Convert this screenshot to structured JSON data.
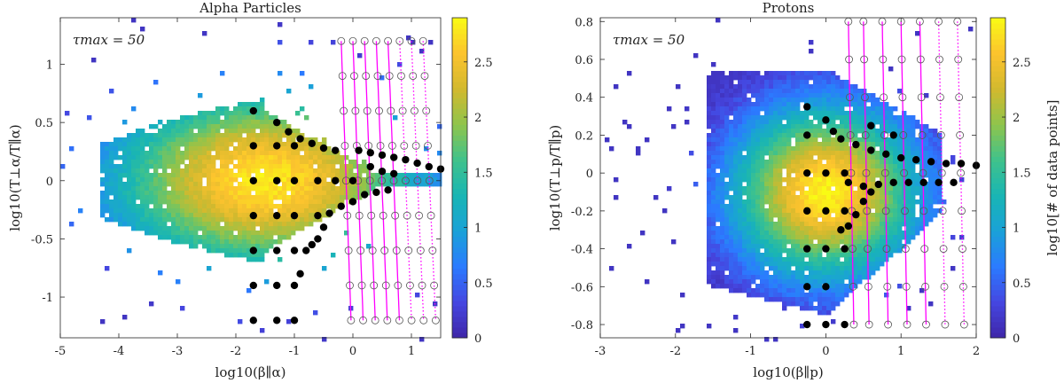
{
  "chart_data": [
    {
      "type": "heatmap",
      "title": "Alpha Particles",
      "xlabel": "log10(β∥α)",
      "ylabel": "log10(T⊥α/T∥α)",
      "xlim": [
        -5,
        1.5
      ],
      "ylim": [
        -1.35,
        1.4
      ],
      "xticks": [
        "-5",
        "-4",
        "-3",
        "-2",
        "-1",
        "0",
        "1"
      ],
      "xtick_values": [
        -5,
        -4,
        -3,
        -2,
        -1,
        0,
        1
      ],
      "yticks": [
        "1",
        "0.5",
        "0",
        "-0.5",
        "-1"
      ],
      "ytick_values": [
        1,
        0.5,
        0,
        -0.5,
        -1
      ],
      "annotation": "τmax = 50",
      "colorbar": {
        "label": "",
        "ticks": [
          "0",
          "0.5",
          "1",
          "1.5",
          "2",
          "2.5"
        ],
        "tick_values": [
          0,
          0.5,
          1,
          1.5,
          2,
          2.5
        ],
        "range": [
          0,
          2.9
        ]
      },
      "density_center": [
        -1.5,
        0.0
      ],
      "black_points": [
        [
          -1.7,
          0.6
        ],
        [
          -1.7,
          0.3
        ],
        [
          -1.7,
          0
        ],
        [
          -1.7,
          -0.3
        ],
        [
          -1.7,
          -0.6
        ],
        [
          -1.7,
          -0.9
        ],
        [
          -1.7,
          -1.2
        ],
        [
          -1.3,
          0.3
        ],
        [
          -1.3,
          0
        ],
        [
          -1.3,
          -0.3
        ],
        [
          -1.3,
          -0.6
        ],
        [
          -1.3,
          -0.9
        ],
        [
          -1.3,
          -1.2
        ],
        [
          -1.0,
          0.3
        ],
        [
          -1.0,
          0
        ],
        [
          -1.0,
          -0.3
        ],
        [
          -1.0,
          -0.6
        ],
        [
          -1.0,
          -1.2
        ],
        [
          -0.6,
          0
        ],
        [
          -0.6,
          -0.3
        ],
        [
          -0.3,
          0
        ],
        [
          0,
          0
        ],
        [
          -1.3,
          0.5
        ],
        [
          -1.1,
          0.42
        ],
        [
          -0.9,
          0.36
        ],
        [
          -0.7,
          0.32
        ],
        [
          -0.5,
          0.28
        ],
        [
          -0.3,
          0.26
        ],
        [
          0.1,
          0.26
        ],
        [
          0.3,
          0.24
        ],
        [
          0.5,
          0.22
        ],
        [
          0.7,
          0.2
        ],
        [
          0.9,
          0.18
        ],
        [
          1.1,
          0.15
        ],
        [
          1.3,
          0.12
        ],
        [
          1.5,
          0.1
        ],
        [
          0.3,
          0.12
        ],
        [
          0.5,
          0.08
        ],
        [
          0.7,
          0.06
        ],
        [
          -0.4,
          -0.28
        ],
        [
          -0.2,
          -0.22
        ],
        [
          0,
          -0.18
        ],
        [
          0.2,
          -0.12
        ],
        [
          0.4,
          -0.1
        ],
        [
          0.6,
          -0.08
        ],
        [
          -0.5,
          -0.4
        ],
        [
          -0.6,
          -0.5
        ],
        [
          -0.8,
          -0.6
        ],
        [
          -0.9,
          -0.8
        ],
        [
          -1.0,
          -0.9
        ],
        [
          -0.7,
          -0.55
        ]
      ],
      "marker_grid": {
        "x": [
          -0.2,
          0,
          0.2,
          0.4,
          0.6,
          0.8,
          1.0,
          1.2
        ],
        "y": [
          1.2,
          0.9,
          0.6,
          0.3,
          0,
          -0.3,
          -0.6,
          -0.9,
          -1.2
        ]
      }
    },
    {
      "type": "heatmap",
      "title": "Protons",
      "xlabel": "log10(β∥p)",
      "ylabel": "log10(T⊥p/T∥p)",
      "xlim": [
        -3,
        2
      ],
      "ylim": [
        -0.87,
        0.82
      ],
      "xticks": [
        "-3",
        "-2",
        "-1",
        "0",
        "1",
        "2"
      ],
      "xtick_values": [
        -3,
        -2,
        -1,
        0,
        1,
        2
      ],
      "yticks": [
        "0.8",
        "0.6",
        "0.4",
        "0.2",
        "0",
        "-0.2",
        "-0.4",
        "-0.6",
        "-0.8"
      ],
      "ytick_values": [
        0.8,
        0.6,
        0.4,
        0.2,
        0,
        -0.2,
        -0.4,
        -0.6,
        -0.8
      ],
      "annotation": "τmax = 50",
      "colorbar": {
        "label": "log10[# of data points]",
        "ticks": [
          "0",
          "0.5",
          "1",
          "1.5",
          "2",
          "2.5"
        ],
        "tick_values": [
          0,
          0.5,
          1,
          1.5,
          2,
          2.5
        ],
        "range": [
          0,
          2.9
        ]
      },
      "density_center": [
        0.0,
        -0.1
      ],
      "black_points": [
        [
          -0.25,
          0.2
        ],
        [
          -0.25,
          0
        ],
        [
          -0.25,
          -0.2
        ],
        [
          -0.25,
          -0.4
        ],
        [
          -0.25,
          -0.6
        ],
        [
          -0.25,
          -0.8
        ],
        [
          0,
          0
        ],
        [
          0,
          -0.2
        ],
        [
          0,
          -0.4
        ],
        [
          0,
          -0.6
        ],
        [
          0,
          -0.8
        ],
        [
          0.25,
          0
        ],
        [
          0.25,
          -0.2
        ],
        [
          0.25,
          -0.4
        ],
        [
          0.25,
          -0.8
        ],
        [
          -0.25,
          0.35
        ],
        [
          0,
          0.28
        ],
        [
          0.1,
          0.22
        ],
        [
          0.2,
          0.18
        ],
        [
          0.4,
          0.15
        ],
        [
          0.6,
          0.12
        ],
        [
          0.8,
          0.1
        ],
        [
          1.0,
          0.08
        ],
        [
          1.2,
          0.07
        ],
        [
          1.4,
          0.06
        ],
        [
          1.6,
          0.05
        ],
        [
          1.8,
          0.05
        ],
        [
          2.0,
          0.04
        ],
        [
          0.6,
          0.25
        ],
        [
          0.9,
          0.2
        ],
        [
          0.3,
          -0.05
        ],
        [
          0.5,
          -0.07
        ],
        [
          0.7,
          -0.06
        ],
        [
          0.9,
          -0.05
        ],
        [
          1.1,
          -0.05
        ],
        [
          1.3,
          -0.05
        ],
        [
          1.5,
          -0.05
        ],
        [
          1.7,
          -0.05
        ],
        [
          0.3,
          -0.28
        ],
        [
          0.4,
          -0.22
        ],
        [
          0.5,
          -0.15
        ],
        [
          0.6,
          -0.1
        ],
        [
          0.2,
          -0.3
        ]
      ],
      "marker_grid": {
        "x": [
          0.3,
          0.5,
          0.75,
          1.0,
          1.25,
          1.5,
          1.75
        ],
        "y": [
          0.8,
          0.6,
          0.4,
          0.2,
          0,
          -0.2,
          -0.4,
          -0.6,
          -0.8
        ]
      }
    }
  ],
  "colors": {
    "magenta": "#ff00ff",
    "colormap": [
      "#3e26a8",
      "#4546e0",
      "#2b7bff",
      "#1aa1d8",
      "#19b5b4",
      "#3fc28c",
      "#8fc44c",
      "#d2b92e",
      "#fcc32e",
      "#f9fb14"
    ]
  }
}
